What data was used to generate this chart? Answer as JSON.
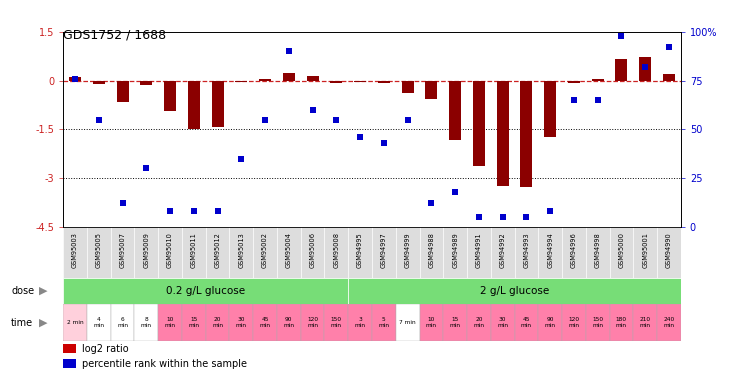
{
  "title": "GDS1752 / 1688",
  "samples": [
    "GSM95003",
    "GSM95005",
    "GSM95007",
    "GSM95009",
    "GSM95010",
    "GSM95011",
    "GSM95012",
    "GSM95013",
    "GSM95002",
    "GSM95004",
    "GSM95006",
    "GSM95008",
    "GSM94995",
    "GSM94997",
    "GSM94999",
    "GSM94988",
    "GSM94989",
    "GSM94991",
    "GSM94992",
    "GSM94993",
    "GSM94994",
    "GSM94996",
    "GSM94998",
    "GSM95000",
    "GSM95001",
    "GSM94990"
  ],
  "log2_ratio": [
    0.12,
    -0.1,
    -0.65,
    -0.12,
    -0.92,
    -1.48,
    -1.42,
    -0.05,
    0.06,
    0.22,
    0.14,
    -0.08,
    -0.05,
    -0.07,
    -0.38,
    -0.55,
    -1.82,
    -2.62,
    -3.25,
    -3.28,
    -1.72,
    -0.08,
    0.04,
    0.66,
    0.74,
    0.19
  ],
  "percentile": [
    76,
    55,
    12,
    30,
    8,
    8,
    8,
    35,
    55,
    90,
    60,
    55,
    46,
    43,
    55,
    12,
    18,
    5,
    5,
    5,
    8,
    65,
    65,
    98,
    82,
    92
  ],
  "ylim": [
    -4.5,
    1.5
  ],
  "yticks": [
    -4.5,
    -3.0,
    -1.5,
    0.0,
    1.5
  ],
  "ytick_labels": [
    "-4.5",
    "-3",
    "-1.5",
    "0",
    "1.5"
  ],
  "right_yticks": [
    0,
    25,
    50,
    75,
    100
  ],
  "right_ytick_labels": [
    "0",
    "25",
    "50",
    "75",
    "100%"
  ],
  "bar_color": "#8B0000",
  "dot_color": "#0000CC",
  "hline_color": "#CC2222",
  "dotted_lines": [
    -1.5,
    -3.0
  ],
  "dose_label1": "0.2 g/L glucose",
  "dose_label2": "2 g/L glucose",
  "dose_color": "#77DD77",
  "time_labels": [
    "2 min",
    "4\nmin",
    "6\nmin",
    "8\nmin",
    "10\nmin",
    "15\nmin",
    "20\nmin",
    "30\nmin",
    "45\nmin",
    "90\nmin",
    "120\nmin",
    "150\nmin",
    "3\nmin",
    "5\nmin",
    "7 min",
    "10\nmin",
    "15\nmin",
    "20\nmin",
    "30\nmin",
    "45\nmin",
    "90\nmin",
    "120\nmin",
    "150\nmin",
    "180\nmin",
    "210\nmin",
    "240\nmin"
  ],
  "time_bg": [
    "#FFD0DC",
    "#FFFFFF",
    "#FFFFFF",
    "#FFFFFF",
    "#FF80AA",
    "#FF80AA",
    "#FF80AA",
    "#FF80AA",
    "#FF80AA",
    "#FF80AA",
    "#FF80AA",
    "#FF80AA",
    "#FF80AA",
    "#FF80AA",
    "#FFFFFF",
    "#FF80AA",
    "#FF80AA",
    "#FF80AA",
    "#FF80AA",
    "#FF80AA",
    "#FF80AA",
    "#FF80AA",
    "#FF80AA",
    "#FF80AA",
    "#FF80AA",
    "#FF80AA"
  ],
  "sample_bg": "#DDDDDD",
  "legend_bar_color": "#CC0000",
  "legend_dot_color": "#0000CC"
}
